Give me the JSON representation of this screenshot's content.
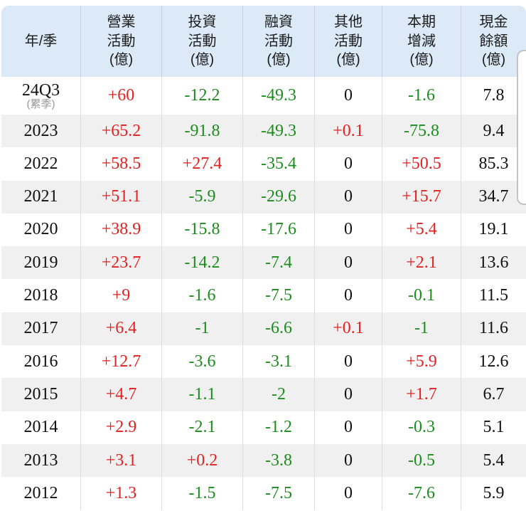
{
  "colors": {
    "positive": "#e02222",
    "negative": "#1d8c1d",
    "neutral": "#111111",
    "header_bg": "#dce9f7",
    "header_grid": "#c9d3de",
    "row_alt_bg": "#f0f0f0",
    "grid_line": "#dedede"
  },
  "table": {
    "columns": [
      {
        "key": "year",
        "label": "年/季"
      },
      {
        "key": "operating",
        "label": "營業\n活動\n(億)"
      },
      {
        "key": "investing",
        "label": "投資\n活動\n(億)"
      },
      {
        "key": "financing",
        "label": "融資\n活動\n(億)"
      },
      {
        "key": "other",
        "label": "其他\n活動\n(億)"
      },
      {
        "key": "net-change",
        "label": "本期\n增減\n(億)"
      },
      {
        "key": "cash-balance",
        "label": "現金\n餘額\n(億)"
      }
    ],
    "rows": [
      {
        "year": "24Q3",
        "year_note": "(累季)",
        "values": [
          "+60",
          "-12.2",
          "-49.3",
          "0",
          "-1.6",
          "7.8"
        ]
      },
      {
        "year": "2023",
        "values": [
          "+65.2",
          "-91.8",
          "-49.3",
          "+0.1",
          "-75.8",
          "9.4"
        ]
      },
      {
        "year": "2022",
        "values": [
          "+58.5",
          "+27.4",
          "-35.4",
          "0",
          "+50.5",
          "85.3"
        ]
      },
      {
        "year": "2021",
        "values": [
          "+51.1",
          "-5.9",
          "-29.6",
          "0",
          "+15.7",
          "34.7"
        ]
      },
      {
        "year": "2020",
        "values": [
          "+38.9",
          "-15.8",
          "-17.6",
          "0",
          "+5.4",
          "19.1"
        ]
      },
      {
        "year": "2019",
        "values": [
          "+23.7",
          "-14.2",
          "-7.4",
          "0",
          "+2.1",
          "13.6"
        ]
      },
      {
        "year": "2018",
        "values": [
          "+9",
          "-1.6",
          "-7.5",
          "0",
          "-0.1",
          "11.5"
        ]
      },
      {
        "year": "2017",
        "values": [
          "+6.4",
          "-1",
          "-6.6",
          "+0.1",
          "-1",
          "11.6"
        ]
      },
      {
        "year": "2016",
        "values": [
          "+12.7",
          "-3.6",
          "-3.1",
          "0",
          "+5.9",
          "12.6"
        ]
      },
      {
        "year": "2015",
        "values": [
          "+4.7",
          "-1.1",
          "-2",
          "0",
          "+1.7",
          "6.7"
        ]
      },
      {
        "year": "2014",
        "values": [
          "+2.9",
          "-2.1",
          "-1.2",
          "0",
          "-0.3",
          "5.1"
        ]
      },
      {
        "year": "2013",
        "values": [
          "+3.1",
          "+0.2",
          "-3.8",
          "0",
          "-0.5",
          "5.4"
        ]
      },
      {
        "year": "2012",
        "values": [
          "+1.3",
          "-1.5",
          "-7.5",
          "0",
          "-7.6",
          "5.9"
        ]
      }
    ]
  }
}
